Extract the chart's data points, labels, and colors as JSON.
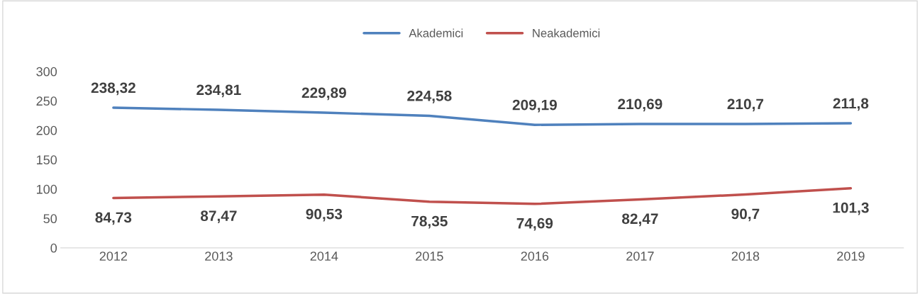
{
  "chart_data": {
    "type": "line",
    "categories": [
      "2012",
      "2013",
      "2014",
      "2015",
      "2016",
      "2017",
      "2018",
      "2019"
    ],
    "series": [
      {
        "name": "Akademici",
        "color": "#4f81bd",
        "values": [
          238.32,
          234.81,
          229.89,
          224.58,
          209.19,
          210.69,
          210.7,
          211.8
        ],
        "value_labels": [
          "238,32",
          "234,81",
          "229,89",
          "224,58",
          "209,19",
          "210,69",
          "210,7",
          "211,8"
        ]
      },
      {
        "name": "Neakademici",
        "color": "#c0504d",
        "values": [
          84.73,
          87.47,
          90.53,
          78.35,
          74.69,
          82.47,
          90.7,
          101.3
        ],
        "value_labels": [
          "84,73",
          "87,47",
          "90,53",
          "78,35",
          "74,69",
          "82,47",
          "90,7",
          "101,3"
        ]
      }
    ],
    "ylim": [
      0,
      300
    ],
    "yticks": [
      0,
      50,
      100,
      150,
      200,
      250,
      300
    ],
    "grid": false,
    "legend": "top",
    "marker": "none",
    "line_style": "solid"
  }
}
